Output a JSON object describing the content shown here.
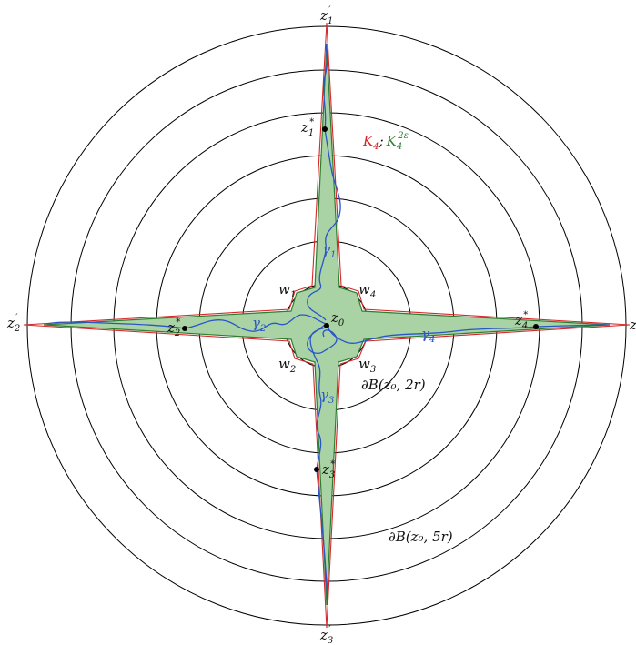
{
  "labels": {
    "z1p": {
      "base": "z",
      "sup": "′",
      "sub": "1"
    },
    "z2p": {
      "base": "z",
      "sup": "′",
      "sub": "2"
    },
    "z3p": {
      "base": "z",
      "sup": "′",
      "sub": "3"
    },
    "z4p": {
      "base": "z",
      "sup": "",
      "sub": ""
    },
    "z1s": {
      "base": "z",
      "sup": "*",
      "sub": "1"
    },
    "z2s": {
      "base": "z",
      "sup": "*",
      "sub": "2"
    },
    "z3s": {
      "base": "z",
      "sup": "*",
      "sub": "3"
    },
    "z4s": {
      "base": "z",
      "sup": "*",
      "sub": "4"
    },
    "z0": {
      "base": "z",
      "sub": "0"
    },
    "w1": {
      "base": "w",
      "sub": "1"
    },
    "w2": {
      "base": "w",
      "sub": "2"
    },
    "w3": {
      "base": "w",
      "sub": "3"
    },
    "w4": {
      "base": "w",
      "sub": "4"
    },
    "g1": {
      "base": "γ",
      "sub": "1"
    },
    "g2": {
      "base": "γ",
      "sub": "2"
    },
    "g3": {
      "base": "γ",
      "sub": "3"
    },
    "g4": {
      "base": "γ",
      "sub": "4"
    },
    "legend": {
      "k": "K",
      "k_sub": "4",
      "sep": ";",
      "k2": "K",
      "k2_sub": "4",
      "k2_sup": "2ε"
    },
    "boundary_2r": "∂B(z₀, 2r)",
    "boundary_5r": "∂B(z₀, 5r)"
  },
  "colors": {
    "red": "#d62728",
    "green": "#2e7d32",
    "fill_green": "#a9d3a4",
    "blue": "#2a55c7",
    "circle": "#000000"
  }
}
